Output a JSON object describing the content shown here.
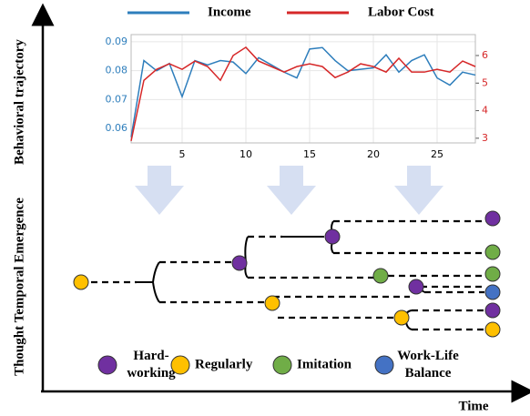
{
  "chart_data": {
    "type": "line",
    "x": [
      1,
      2,
      3,
      4,
      5,
      6,
      7,
      8,
      9,
      10,
      11,
      12,
      13,
      14,
      15,
      16,
      17,
      18,
      19,
      20,
      21,
      22,
      23,
      24,
      25,
      26,
      27,
      28
    ],
    "series": [
      {
        "name": "Income",
        "color": "#2e7ebc",
        "values": [
          0.057,
          0.0835,
          0.08,
          0.0825,
          0.071,
          0.0835,
          0.082,
          0.0835,
          0.083,
          0.079,
          0.0845,
          0.082,
          0.0795,
          0.0775,
          0.0875,
          0.088,
          0.0835,
          0.08,
          0.0805,
          0.081,
          0.0855,
          0.0795,
          0.0835,
          0.0855,
          0.0775,
          0.075,
          0.0795,
          0.0785
        ]
      },
      {
        "name": "Labor Cost",
        "color": "#d62728",
        "axis": "y2",
        "values": [
          2.9,
          5.1,
          5.5,
          5.7,
          5.5,
          5.8,
          5.6,
          5.1,
          6.0,
          6.3,
          5.8,
          5.6,
          5.4,
          5.6,
          5.7,
          5.6,
          5.2,
          5.4,
          5.7,
          5.6,
          5.4,
          5.9,
          5.4,
          5.4,
          5.5,
          5.4,
          5.8,
          5.6
        ]
      }
    ],
    "xlim": [
      1,
      28
    ],
    "xticks": [
      5,
      10,
      15,
      20,
      25
    ],
    "ylim": [
      0.055,
      0.0925
    ],
    "yticks": [
      0.06,
      0.07,
      0.08,
      0.09
    ],
    "y2lim": [
      2.83,
      6.76
    ],
    "y2ticks": [
      3,
      4,
      5,
      6
    ],
    "grid": true
  },
  "axes": {
    "y_top": "Behavioral trajectory",
    "y_bottom": "Thought Temporal Emergence",
    "x": "Time"
  },
  "legend": [
    {
      "lines": [
        "Hard-",
        "working"
      ],
      "color": "#7030a0"
    },
    {
      "lines": [
        "Regularly"
      ],
      "color": "#ffc000"
    },
    {
      "lines": [
        "Imitation"
      ],
      "color": "#70ad47"
    },
    {
      "lines": [
        "Work-Life",
        "Balance"
      ],
      "color": "#4472c4"
    }
  ]
}
